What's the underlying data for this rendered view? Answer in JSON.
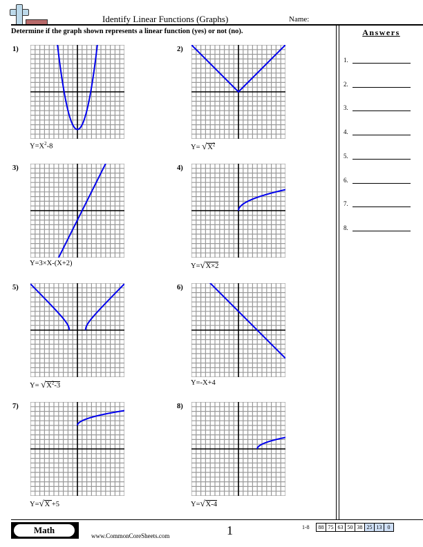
{
  "header": {
    "title": "Identify Linear Functions (Graphs)",
    "name_label": "Name:",
    "instructions": "Determine if the graph shown represents a linear function (yes) or not (no)."
  },
  "answers": {
    "title": "Answers",
    "items": [
      "1.",
      "2.",
      "3.",
      "4.",
      "5.",
      "6.",
      "7.",
      "8."
    ]
  },
  "problems": [
    {
      "num": "1)",
      "eq_pre": "Y=X",
      "eq_sup": "2",
      "eq_post": "-8"
    },
    {
      "num": "2)",
      "eq_pre": "Y= ",
      "eq_rad": "X",
      "eq_sup": "2"
    },
    {
      "num": "3)",
      "eq_pre": "Y=3×X-(X+2)"
    },
    {
      "num": "4)",
      "eq_pre": "Y=",
      "eq_rad": "X×2"
    },
    {
      "num": "5)",
      "eq_pre": "Y= ",
      "eq_rad": "X",
      "eq_sup": "2",
      "eq_post": "-3"
    },
    {
      "num": "6)",
      "eq_pre": "Y=-X+4"
    },
    {
      "num": "7)",
      "eq_pre": "Y=",
      "eq_rad": "X ",
      "eq_post": " +5"
    },
    {
      "num": "8)",
      "eq_pre": "Y=",
      "eq_rad": "X-4"
    }
  ],
  "chart_data": [
    {
      "type": "line",
      "title": "1) Y=X^2-8",
      "xlim": [
        -10,
        10
      ],
      "ylim": [
        -10,
        10
      ],
      "grid": true,
      "function": "x^2-8"
    },
    {
      "type": "line",
      "title": "2) Y=sqrt(X^2)",
      "xlim": [
        -10,
        10
      ],
      "ylim": [
        -10,
        10
      ],
      "grid": true,
      "function": "|x|"
    },
    {
      "type": "line",
      "title": "3) Y=3xX-(X+2)",
      "xlim": [
        -10,
        10
      ],
      "ylim": [
        -10,
        10
      ],
      "grid": true,
      "function": "2x-2"
    },
    {
      "type": "line",
      "title": "4) Y=sqrt(Xx2)",
      "xlim": [
        -10,
        10
      ],
      "ylim": [
        -10,
        10
      ],
      "grid": true,
      "function": "sqrt(2x)"
    },
    {
      "type": "line",
      "title": "5) Y=sqrt(X^2-3)",
      "xlim": [
        -10,
        10
      ],
      "ylim": [
        -10,
        10
      ],
      "grid": true,
      "function": "sqrt(x^2-3)"
    },
    {
      "type": "line",
      "title": "6) Y=-X+4",
      "xlim": [
        -10,
        10
      ],
      "ylim": [
        -10,
        10
      ],
      "grid": true,
      "function": "-x+4"
    },
    {
      "type": "line",
      "title": "7) Y=sqrt(X)+5",
      "xlim": [
        -10,
        10
      ],
      "ylim": [
        -10,
        10
      ],
      "grid": true,
      "function": "sqrt(x)+5"
    },
    {
      "type": "line",
      "title": "8) Y=sqrt(X-4)",
      "xlim": [
        -10,
        10
      ],
      "ylim": [
        -10,
        10
      ],
      "grid": true,
      "function": "sqrt(x-4)"
    }
  ],
  "footer": {
    "subject": "Math",
    "site": "www.CommonCoreSheets.com",
    "page": "1",
    "score_label": "1-8",
    "scores": [
      "88",
      "75",
      "63",
      "50",
      "38",
      "25",
      "13",
      "0"
    ],
    "highlight_color": "#cfe0f7"
  },
  "colors": {
    "curve": "#0000ee",
    "grid": "#999999",
    "axis": "#000000"
  }
}
